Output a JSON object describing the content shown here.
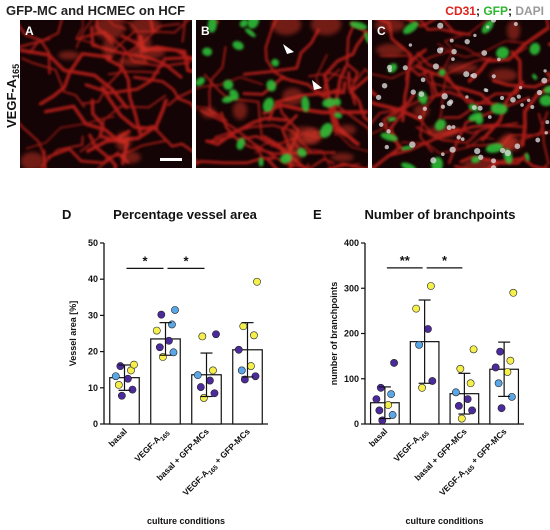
{
  "figure": {
    "top_title": "GFP-MC and HCMEC on HCF",
    "side_label": "VEGF-A",
    "side_label_sub": "165",
    "legend": [
      {
        "text": "CD31",
        "color": "#e0231d"
      },
      {
        "text": "; ",
        "color": "#111111"
      },
      {
        "text": "GFP",
        "color": "#2fb52f"
      },
      {
        "text": "; ",
        "color": "#111111"
      },
      {
        "text": "DAPI",
        "color": "#9a9a9a"
      }
    ],
    "micro_panels": [
      {
        "letter": "A"
      },
      {
        "letter": "B"
      },
      {
        "letter": "C"
      }
    ],
    "colors": {
      "panel_bg": "#140405",
      "cd31": "#c8201a",
      "gfp": "#2ec83a",
      "dapi": "#d8d8d8",
      "bar_fill": "#ffffff",
      "bar_stroke": "#111111",
      "dot_darkpurple": "#4b2a9c",
      "dot_blue": "#5aa6e6",
      "dot_yellow": "#f4ef4a"
    }
  },
  "chart_data": [
    {
      "letter": "D",
      "type": "bar",
      "title": "Percentage vessel area",
      "ylabel": "Vessel area [%]",
      "xlabel": "culture conditions",
      "ylim": [
        0,
        50
      ],
      "yticks": [
        "0",
        "10",
        "20",
        "30",
        "40",
        "50"
      ],
      "categories": [
        {
          "main": "basal",
          "sub": "",
          "rest": ""
        },
        {
          "main": "VEGF-A",
          "sub": "165",
          "rest": ""
        },
        {
          "main": "basal + GFP-MCs",
          "sub": "",
          "rest": ""
        },
        {
          "main": "VEGF-A",
          "sub": "165",
          "rest": " + GFP-MCs"
        }
      ],
      "values": [
        12.8,
        23.5,
        13.6,
        20.5
      ],
      "sd": [
        3.5,
        4.5,
        6.0,
        7.5
      ],
      "points": [
        [
          [
            7.8,
            "p"
          ],
          [
            9.5,
            "p"
          ],
          [
            10.8,
            "y"
          ],
          [
            12.5,
            "p"
          ],
          [
            13.2,
            "b"
          ],
          [
            14.8,
            "y"
          ],
          [
            16.0,
            "p"
          ],
          [
            16.4,
            "y"
          ]
        ],
        [
          [
            18.5,
            "y"
          ],
          [
            19.8,
            "b"
          ],
          [
            21.2,
            "p"
          ],
          [
            23.0,
            "p"
          ],
          [
            25.8,
            "y"
          ],
          [
            27.5,
            "b"
          ],
          [
            30.2,
            "p"
          ],
          [
            31.5,
            "b"
          ]
        ],
        [
          [
            7.2,
            "y"
          ],
          [
            8.5,
            "p"
          ],
          [
            10.2,
            "p"
          ],
          [
            12.0,
            "p"
          ],
          [
            13.5,
            "b"
          ],
          [
            14.8,
            "y"
          ],
          [
            24.2,
            "y"
          ],
          [
            24.8,
            "p"
          ]
        ],
        [
          [
            12.3,
            "p"
          ],
          [
            13.2,
            "p"
          ],
          [
            14.8,
            "b"
          ],
          [
            16.0,
            "y"
          ],
          [
            20.5,
            "p"
          ],
          [
            24.5,
            "y"
          ],
          [
            27.0,
            "y"
          ],
          [
            39.3,
            "y"
          ]
        ]
      ],
      "brackets": [
        {
          "from": 0,
          "to": 1,
          "label": "*",
          "y": 43
        },
        {
          "from": 1,
          "to": 2,
          "label": "*",
          "y": 43
        }
      ]
    },
    {
      "letter": "E",
      "type": "bar",
      "title": "Number of branchpoints",
      "ylabel": "number of branchpoints",
      "xlabel": "culture conditions",
      "ylim": [
        0,
        400
      ],
      "yticks": [
        "0",
        "100",
        "200",
        "300",
        "400"
      ],
      "categories": [
        {
          "main": "basal",
          "sub": "",
          "rest": ""
        },
        {
          "main": "VEGF-A",
          "sub": "165",
          "rest": ""
        },
        {
          "main": "basal + GFP-MCs",
          "sub": "",
          "rest": ""
        },
        {
          "main": "VEGF-A",
          "sub": "165",
          "rest": " + GFP-MCs"
        }
      ],
      "values": [
        47,
        182,
        67,
        121
      ],
      "sd": [
        35,
        92,
        45,
        60
      ],
      "points": [
        [
          [
            8,
            "p"
          ],
          [
            20,
            "b"
          ],
          [
            30,
            "p"
          ],
          [
            42,
            "y"
          ],
          [
            55,
            "p"
          ],
          [
            66,
            "b"
          ],
          [
            80,
            "p"
          ],
          [
            135,
            "p"
          ]
        ],
        [
          [
            80,
            "y"
          ],
          [
            95,
            "p"
          ],
          [
            175,
            "b"
          ],
          [
            210,
            "p"
          ],
          [
            255,
            "y"
          ],
          [
            305,
            "y"
          ]
        ],
        [
          [
            12,
            "y"
          ],
          [
            30,
            "p"
          ],
          [
            40,
            "p"
          ],
          [
            55,
            "p"
          ],
          [
            70,
            "b"
          ],
          [
            90,
            "y"
          ],
          [
            122,
            "y"
          ],
          [
            165,
            "y"
          ]
        ],
        [
          [
            35,
            "p"
          ],
          [
            60,
            "b"
          ],
          [
            90,
            "b"
          ],
          [
            115,
            "y"
          ],
          [
            125,
            "p"
          ],
          [
            140,
            "y"
          ],
          [
            160,
            "p"
          ],
          [
            290,
            "y"
          ]
        ]
      ],
      "brackets": [
        {
          "from": 0,
          "to": 1,
          "label": "**",
          "y": 345
        },
        {
          "from": 1,
          "to": 2,
          "label": "*",
          "y": 345
        }
      ]
    }
  ]
}
